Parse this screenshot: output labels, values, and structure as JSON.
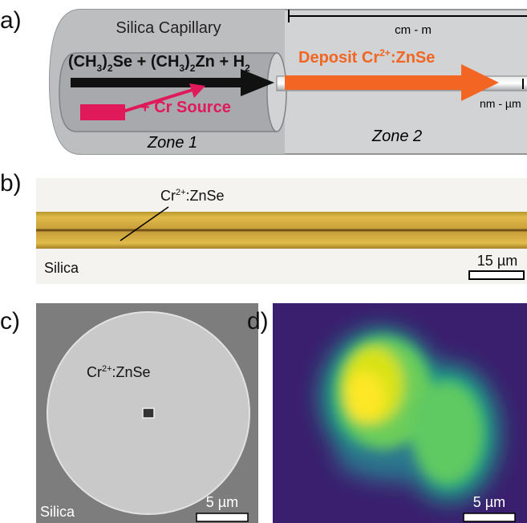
{
  "panels": {
    "a": {
      "label": "a)",
      "capillary": "Silica Capillary",
      "length_scale": "cm - m",
      "precursors": [
        "(CH",
        "3",
        ")",
        "2",
        "Se + (CH",
        "3",
        ")",
        "2",
        "Zn + H",
        "2"
      ],
      "deposit": [
        "Deposit Cr",
        "2+",
        ":ZnSe"
      ],
      "dopant": "+ Cr Source",
      "core_scale": "nm - µm",
      "zone1": "Zone 1",
      "zone2": "Zone 2"
    },
    "b": {
      "label": "b)",
      "core": [
        "Cr",
        "2+",
        ":ZnSe"
      ],
      "cladding": "Silica",
      "scale_bar": "15 µm"
    },
    "c": {
      "label": "c)",
      "core": [
        "Cr",
        "2+",
        ":ZnSe"
      ],
      "cladding": "Silica",
      "scale_bar": "5 µm"
    },
    "d": {
      "label": "d)",
      "scale_bar": "5 µm"
    }
  }
}
